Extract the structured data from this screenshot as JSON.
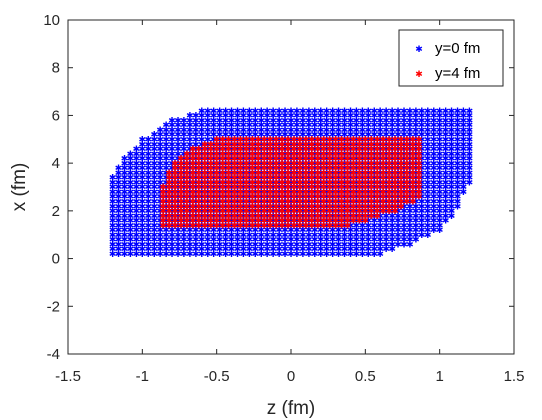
{
  "chart_data": {
    "type": "scatter",
    "xlabel": "z (fm)",
    "ylabel": "x (fm)",
    "xlim": [
      -1.5,
      1.5
    ],
    "ylim": [
      -4,
      10
    ],
    "xticks": [
      -1.5,
      -1,
      -0.5,
      0,
      0.5,
      1,
      1.5
    ],
    "yticks": [
      -4,
      -2,
      0,
      2,
      4,
      6,
      8,
      10
    ],
    "xtick_labels": [
      "-1.5",
      "-1",
      "-0.5",
      "0",
      "0.5",
      "1",
      "1.5"
    ],
    "ytick_labels": [
      "-4",
      "-2",
      "0",
      "2",
      "4",
      "6",
      "8",
      "10"
    ],
    "grid": false,
    "legend_position": "top-right",
    "marker": "*",
    "grid_step": {
      "z": 0.04,
      "x": 0.2
    },
    "series": [
      {
        "name": "y=0 fm",
        "color": "#0000ff",
        "region": {
          "z_range": [
            -1.2,
            1.2
          ],
          "x_min_boundary": [
            [
              -1.2,
              0.2
            ],
            [
              0.6,
              0.2
            ],
            [
              0.8,
              0.6
            ],
            [
              1.0,
              1.2
            ],
            [
              1.1,
              1.8
            ],
            [
              1.2,
              3.2
            ]
          ],
          "x_max_boundary": [
            [
              -1.2,
              3.4
            ],
            [
              -1.1,
              4.4
            ],
            [
              -1.0,
              5.0
            ],
            [
              -0.9,
              5.4
            ],
            [
              -0.8,
              5.8
            ],
            [
              -0.6,
              6.2
            ],
            [
              1.2,
              6.2
            ]
          ]
        }
      },
      {
        "name": "y=4 fm",
        "color": "#ff0000",
        "region": {
          "z_range": [
            -0.86,
            0.86
          ],
          "x_min_boundary": [
            [
              -0.86,
              1.4
            ],
            [
              0.4,
              1.4
            ],
            [
              0.55,
              1.7
            ],
            [
              0.75,
              2.1
            ],
            [
              0.86,
              2.5
            ]
          ],
          "x_max_boundary": [
            [
              -0.86,
              3.0
            ],
            [
              -0.8,
              4.0
            ],
            [
              -0.7,
              4.5
            ],
            [
              -0.5,
              5.0
            ],
            [
              0.86,
              5.0
            ]
          ]
        }
      }
    ]
  }
}
